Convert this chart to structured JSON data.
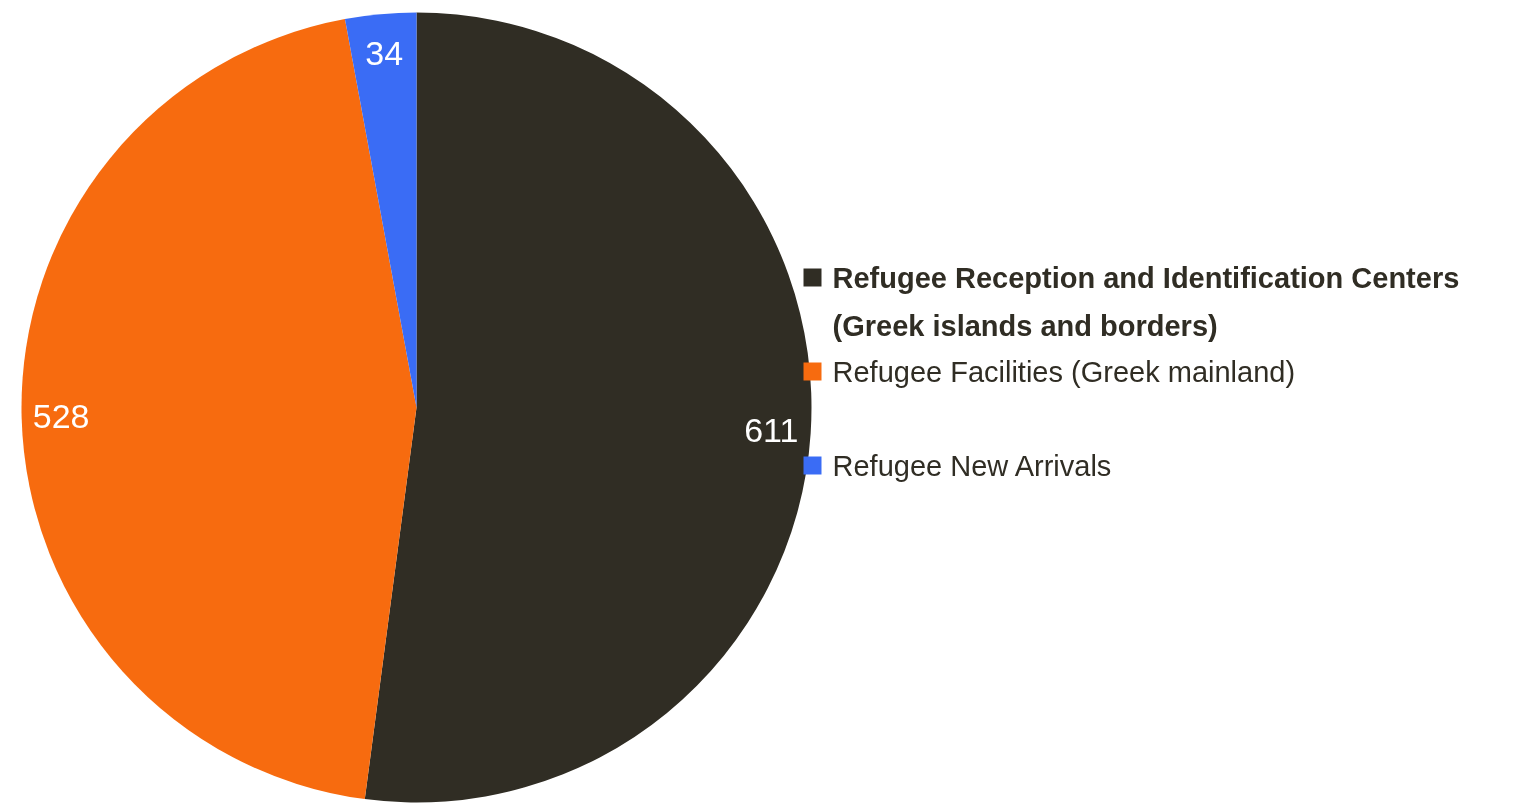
{
  "chart_data": {
    "type": "pie",
    "categories": [
      "Refugee Reception and Identification Centers (Greek islands and borders)",
      "Refugee Facilities (Greek mainland)",
      "Refugee New Arrivals"
    ],
    "values": [
      611,
      528,
      34
    ],
    "colors": [
      "#302d24",
      "#f76b0f",
      "#3a6cf5"
    ],
    "data_labels": true,
    "legend": "right"
  }
}
